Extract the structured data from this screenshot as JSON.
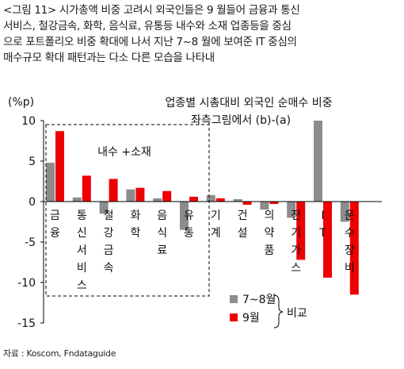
{
  "caption": {
    "line1": "<그림 11> 시가총액 비중 고려시 외국인들은 9 월들어 금융과 통신",
    "line2": "서비스, 철강금속, 화학, 음식료, 유통등 내수와 소재 업종등을 중심",
    "line3": "으로 포트폴리오 비중 확대에 나서 지난 7~8 월에 보여준 IT 중심의",
    "line4": "매수규모 확대 패턴과는 다소 다른 모습을 나타내"
  },
  "source": "자료 : Koscom, Fndataguide",
  "chart_data": {
    "type": "bar",
    "title": "업종별 시총대비 외국인 순매수 비중",
    "subtitle": "좌측그림에서 (b)-(a)",
    "ylabel": "(%p)",
    "ylim": [
      -15,
      10
    ],
    "yticks": [
      -15,
      -10,
      -5,
      0,
      5,
      10
    ],
    "grid": false,
    "legend_position": "bottom-right",
    "categories": [
      "금융",
      "통신서비스",
      "철강금속",
      "화학",
      "음식료",
      "유통",
      "기계",
      "건설",
      "의약품",
      "전기가스",
      "IT",
      "운수장비"
    ],
    "series": [
      {
        "name": "7~8월",
        "color": "#8c8c8c",
        "values": [
          4.8,
          0.5,
          -1.5,
          1.5,
          0.4,
          -3.5,
          0.8,
          0.3,
          -1.0,
          -2.0,
          10.0,
          -2.5
        ]
      },
      {
        "name": "9월",
        "color": "#ee0000",
        "values": [
          8.7,
          3.2,
          2.8,
          1.7,
          1.3,
          0.6,
          0.4,
          -0.4,
          -0.3,
          -7.2,
          -9.4,
          -11.5
        ]
      }
    ],
    "annotations": {
      "box_label": "내수 +소재",
      "legend_brace_label": "비교"
    }
  }
}
